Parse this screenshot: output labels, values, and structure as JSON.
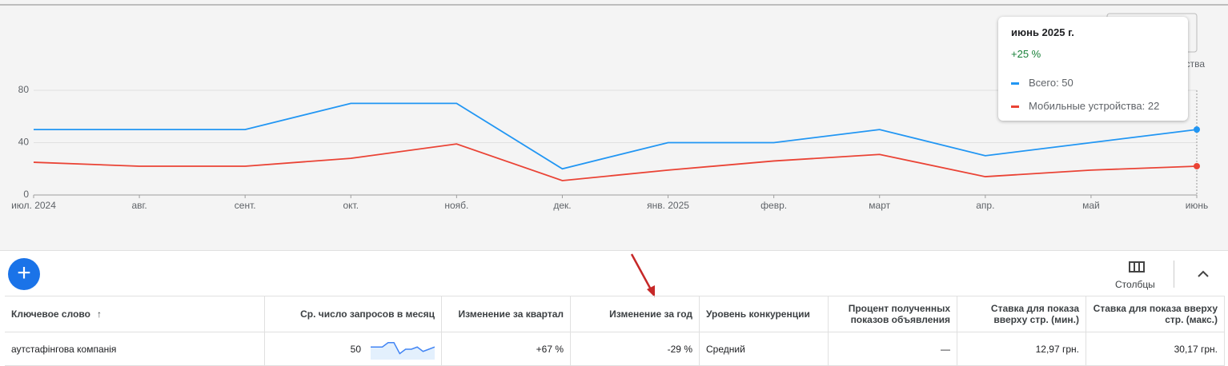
{
  "chart_data": {
    "type": "line",
    "categories": [
      "июл. 2024",
      "авг.",
      "сент.",
      "окт.",
      "нояб.",
      "дек.",
      "янв. 2025",
      "февр.",
      "март",
      "апр.",
      "май",
      "июнь"
    ],
    "series": [
      {
        "name": "Всего",
        "color": "#2196f3",
        "values": [
          50,
          50,
          50,
          70,
          70,
          20,
          40,
          40,
          50,
          30,
          40,
          50
        ]
      },
      {
        "name": "Мобильные устройства",
        "color": "#ea4335",
        "values": [
          25,
          22,
          22,
          28,
          39,
          11,
          19,
          26,
          31,
          14,
          19,
          22
        ]
      }
    ],
    "ylim": [
      0,
      80
    ],
    "yticks": [
      0,
      40,
      80
    ],
    "grid": true
  },
  "tooltip": {
    "title": "июнь 2025 г.",
    "change": "+25 %",
    "items": [
      "Всего: 50",
      "Мобильные устройства: 22"
    ]
  },
  "toolbar": {
    "columns": "Столбцы"
  },
  "table": {
    "headers": [
      "Ключевое слово",
      "Ср. число запросов в месяц",
      "Изменение за квартал",
      "Изменение за год",
      "Уровень конкуренции",
      "Процент полученных показов объявления",
      "Ставка для показа вверху стр. (мин.)",
      "Ставка для показа вверху стр. (макс.)"
    ],
    "rows": [
      [
        "аутстафінгова компанія",
        "50",
        "+67 %",
        "-29 %",
        "Средний",
        "—",
        "12,97 грн.",
        "30,17 грн."
      ]
    ]
  }
}
